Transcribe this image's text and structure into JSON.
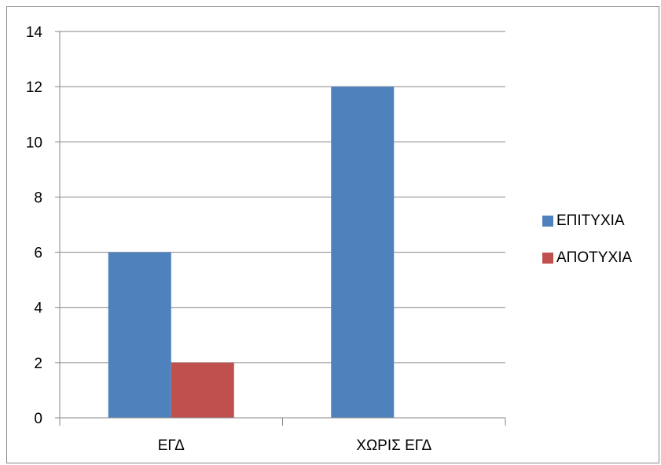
{
  "chart_data": {
    "type": "bar",
    "title": "",
    "xlabel": "",
    "ylabel": "",
    "categories": [
      "ΕΓΔ",
      "ΧΩΡΙΣ ΕΓΔ"
    ],
    "series": [
      {
        "name": "ΕΠΙΤΥΧΙΑ",
        "values": [
          6,
          12
        ],
        "color": "#4F81BD"
      },
      {
        "name": "ΑΠΟΤΥΧΙΑ",
        "values": [
          2,
          0
        ],
        "color": "#C0504D"
      }
    ],
    "ylim": [
      0,
      14
    ],
    "yticks": [
      0,
      2,
      4,
      6,
      8,
      10,
      12,
      14
    ],
    "grid": true,
    "legend_position": "right"
  }
}
